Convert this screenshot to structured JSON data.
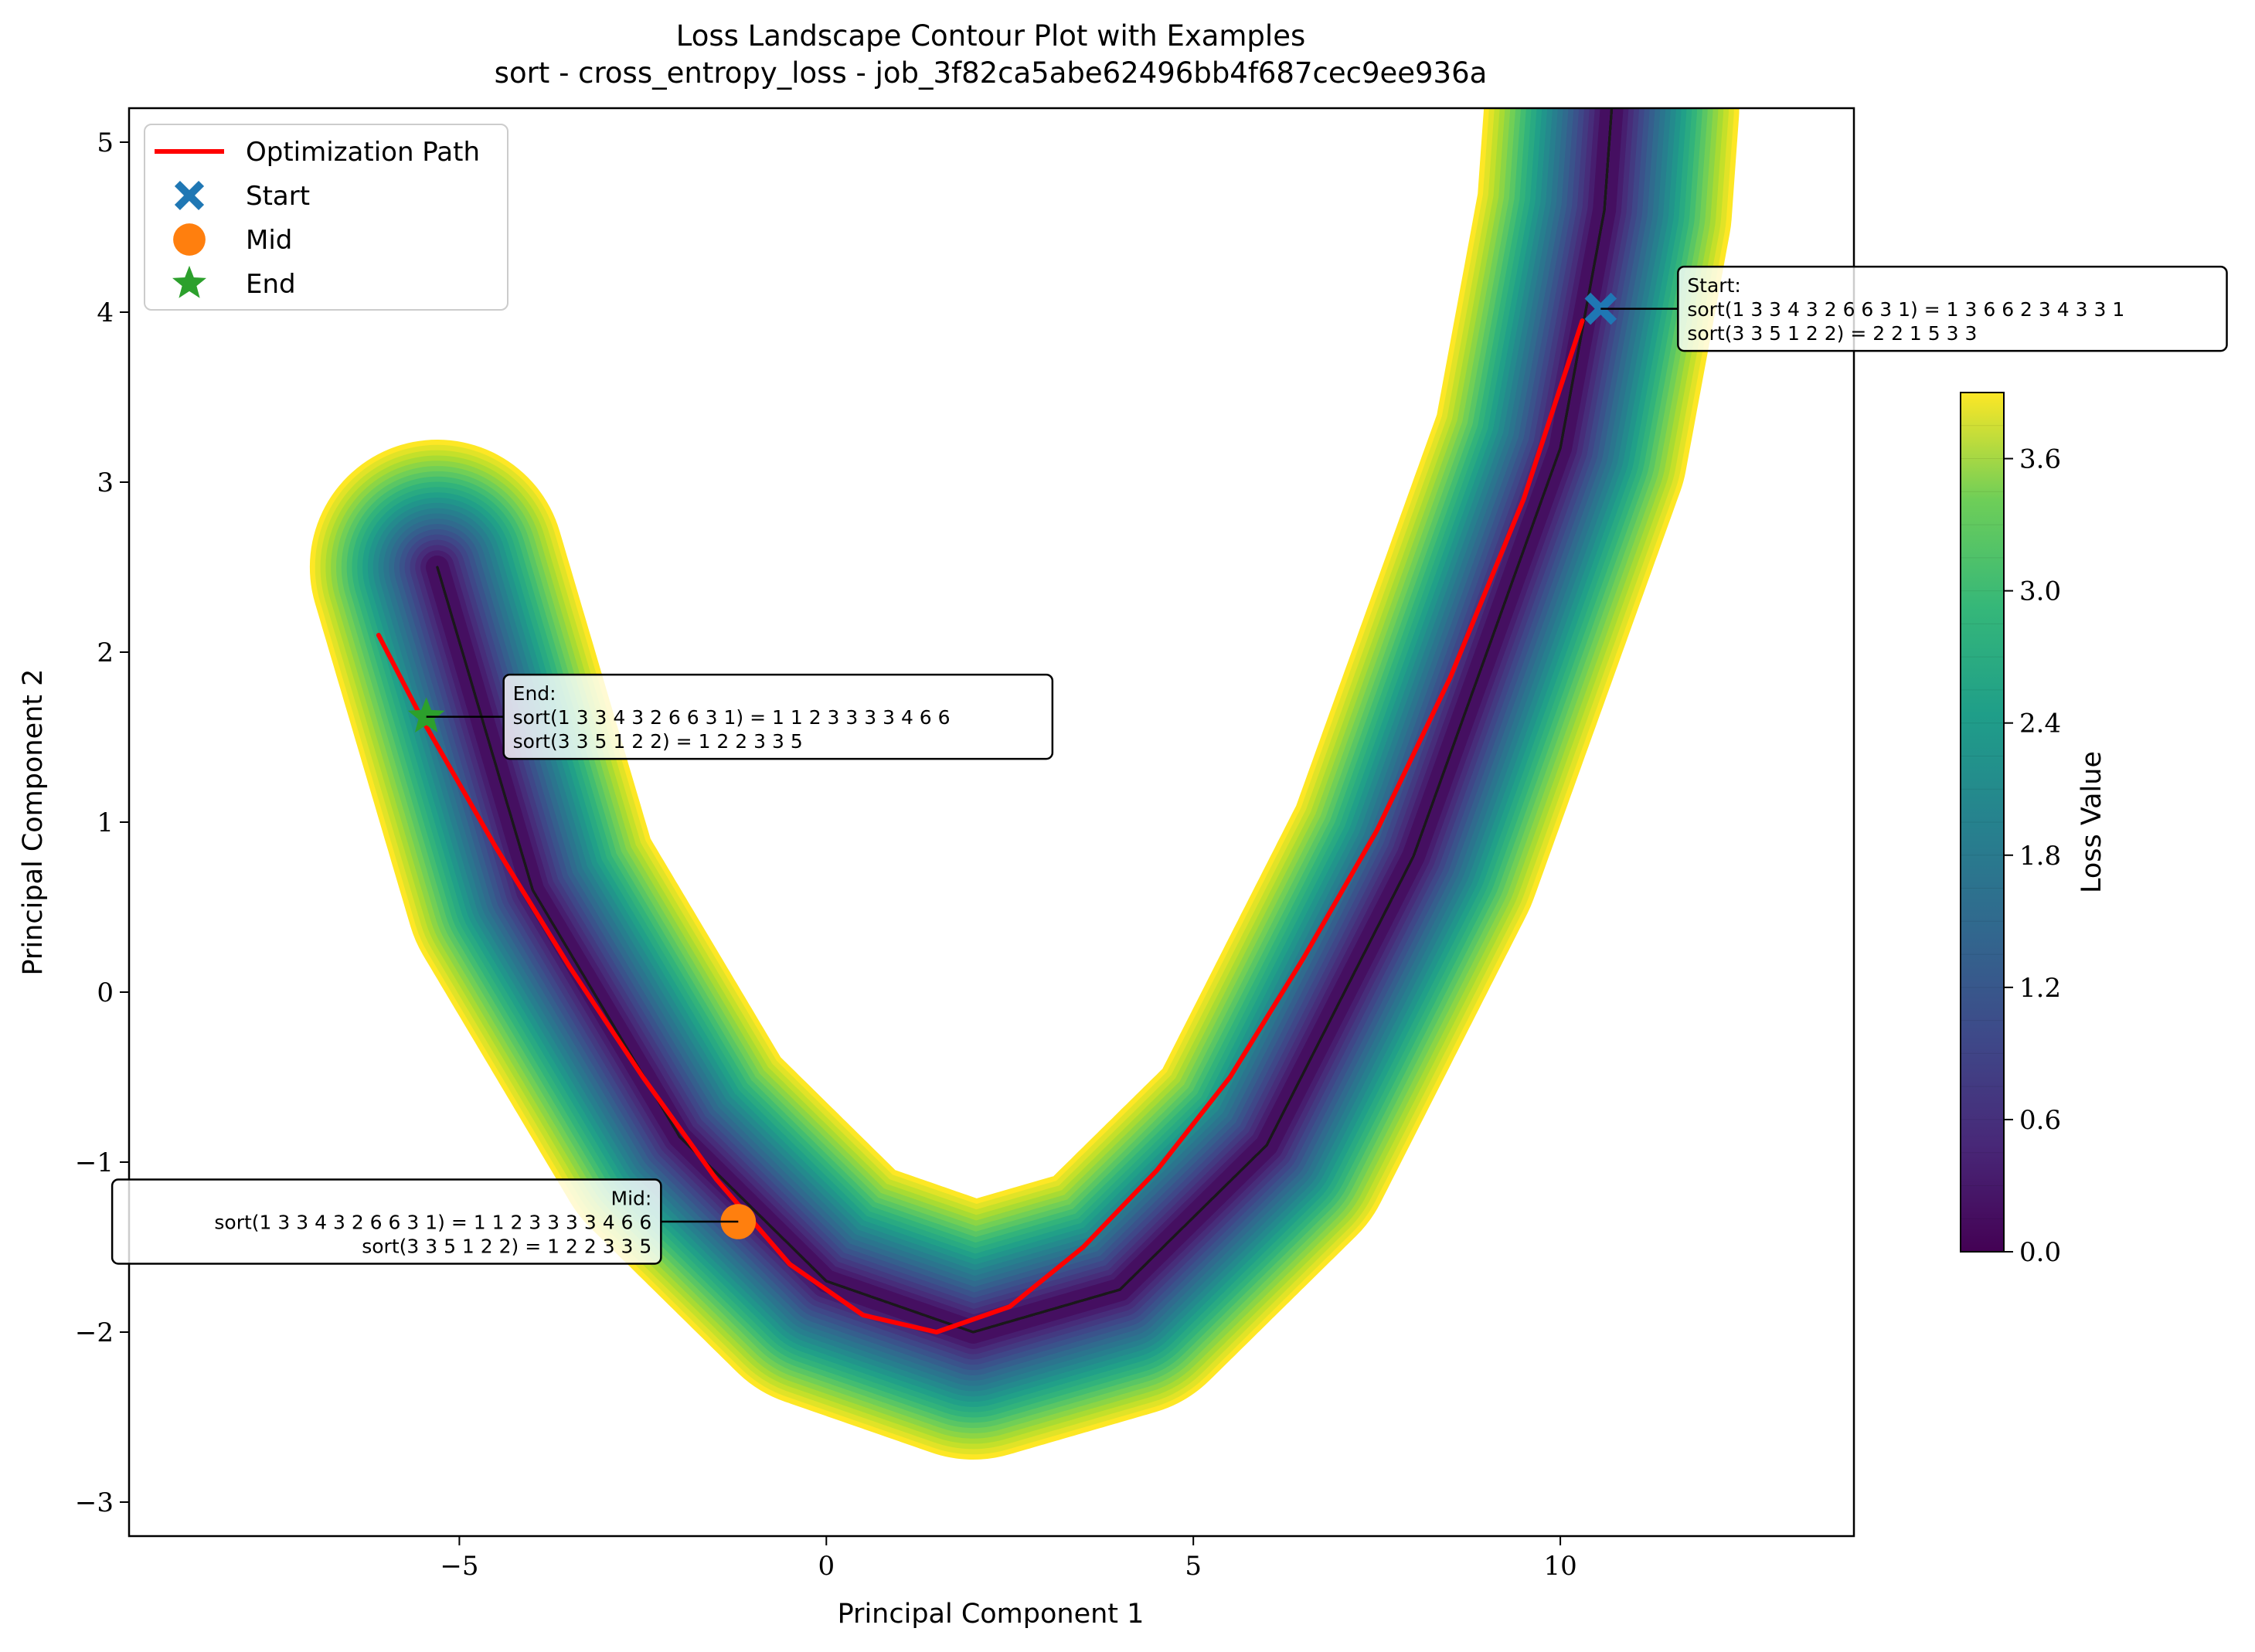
{
  "chart_data": {
    "type": "contour",
    "title": "Loss Landscape Contour Plot with Examples",
    "subtitle": "sort - cross_entropy_loss - job_3f82ca5abe62496bb4f687cec9ee936a",
    "xlabel": "Principal Component 1",
    "ylabel": "Principal Component 2",
    "xlim": [
      -9.5,
      14
    ],
    "ylim": [
      -3.2,
      5.2
    ],
    "xticks": [
      -5,
      0,
      5,
      10
    ],
    "xtick_labels": [
      "−5",
      "0",
      "5",
      "10"
    ],
    "yticks": [
      -3,
      -2,
      -1,
      0,
      1,
      2,
      3,
      4,
      5
    ],
    "ytick_labels": [
      "−3",
      "−2",
      "−1",
      "0",
      "1",
      "2",
      "3",
      "4",
      "5"
    ],
    "grid": false,
    "legend": {
      "placement": "upper-left",
      "entries": [
        "Optimization Path",
        "Start",
        "Mid",
        "End"
      ]
    },
    "colorbar": {
      "label": "Loss Value",
      "range": [
        0,
        3.9
      ],
      "ticks": [
        0.0,
        0.6,
        1.2,
        1.8,
        2.4,
        3.0,
        3.6
      ],
      "tick_labels": [
        "0.0",
        "0.6",
        "1.2",
        "1.8",
        "2.4",
        "3.0",
        "3.6"
      ],
      "colormap": "viridis"
    },
    "valley": {
      "curve_x": [
        -5.3,
        -4.0,
        -2.0,
        0.0,
        2.0,
        4.0,
        6.0,
        8.0,
        10.0,
        10.6,
        10.7
      ],
      "curve_y": [
        2.5,
        0.6,
        -0.85,
        -1.7,
        -2.0,
        -1.75,
        -0.9,
        0.8,
        3.2,
        4.6,
        5.2
      ],
      "floor_min": -2.5
    },
    "path": {
      "name": "Optimization Path",
      "color": "#ff0000",
      "x": [
        -6.1,
        -5.5,
        -4.5,
        -3.5,
        -2.5,
        -1.5,
        -0.5,
        0.5,
        1.5,
        2.5,
        3.5,
        4.5,
        5.5,
        6.5,
        7.5,
        8.5,
        9.5,
        10.3
      ],
      "y": [
        2.1,
        1.6,
        0.85,
        0.15,
        -0.5,
        -1.1,
        -1.6,
        -1.9,
        -2.0,
        -1.85,
        -1.5,
        -1.05,
        -0.5,
        0.2,
        0.95,
        1.85,
        2.9,
        3.95
      ]
    },
    "markers": [
      {
        "name": "Start",
        "shape": "x",
        "x": 10.55,
        "y": 4.02,
        "color": "#1f77b4"
      },
      {
        "name": "Mid",
        "shape": "circle",
        "x": -1.2,
        "y": -1.35,
        "color": "#ff7f0e"
      },
      {
        "name": "End",
        "shape": "star",
        "x": -5.45,
        "y": 1.62,
        "color": "#2ca02c"
      }
    ],
    "annotations": [
      {
        "marker": "Start",
        "align": "left",
        "lines": [
          "Start:",
          "sort(1 3 3 4 3 2 6 6 3 1) = 1 3 6 6 2 3 4 3 3 1",
          "sort(3 3 5 1 2 2) = 2 2 1 5 3 3"
        ]
      },
      {
        "marker": "End",
        "align": "left",
        "lines": [
          "End:",
          "sort(1 3 3 4 3 2 6 6 3 1) = 1 1 2 3 3 3 3 4 6 6",
          "sort(3 3 5 1 2 2) = 1 2 2 3 3 5"
        ]
      },
      {
        "marker": "Mid",
        "align": "right",
        "lines": [
          "Mid:",
          "sort(1 3 3 4 3 2 6 6 3 1) = 1 1 2 3 3 3 3 4 6 6",
          "sort(3 3 5 1 2 2) = 1 2 2 3 3 5"
        ]
      }
    ]
  }
}
